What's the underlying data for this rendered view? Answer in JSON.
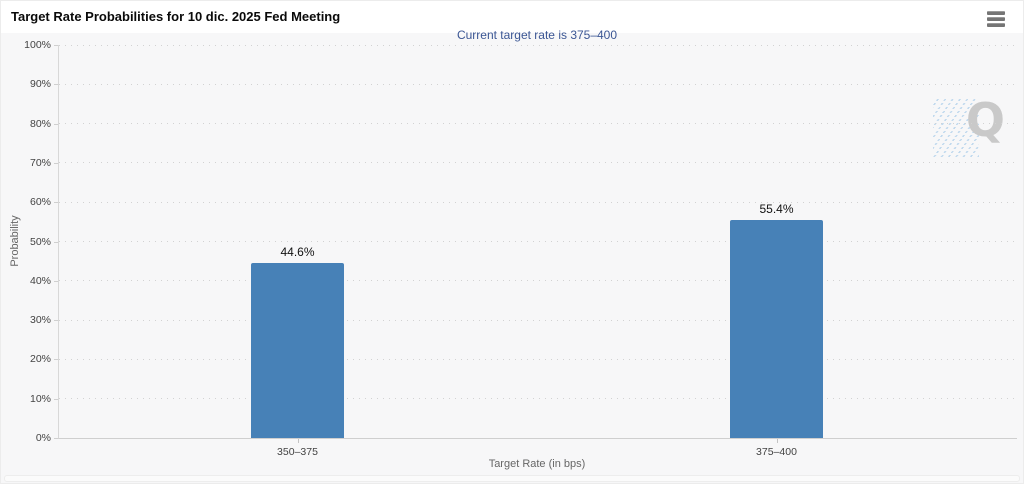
{
  "chart_data": {
    "type": "bar",
    "title": "Target Rate Probabilities for 10 dic. 2025 Fed Meeting",
    "subtitle": "Current target rate is 375–400",
    "categories": [
      "350–375",
      "375–400"
    ],
    "values": [
      44.6,
      55.4
    ],
    "value_labels": [
      "44.6%",
      "55.4%"
    ],
    "xlabel": "Target Rate (in bps)",
    "ylabel": "Probability",
    "ylim": [
      0,
      100
    ],
    "ytick_step": 10,
    "ytick_suffix": "%",
    "grid": "dotted horizontal gridlines, light gray",
    "legend": "none",
    "bar_color": "#4781b7"
  },
  "icons": {
    "menu": "hamburger-icon",
    "watermark_letter": "Q"
  },
  "colors": {
    "subtitle": "#3b5694",
    "background": "#f7f7f8",
    "header_background": "#ffffff",
    "bar": "#4781b7"
  }
}
